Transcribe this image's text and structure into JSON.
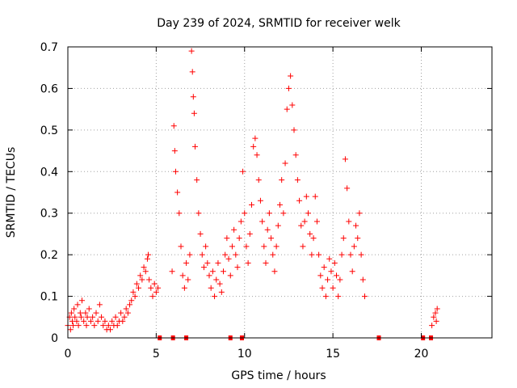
{
  "chart_data": {
    "type": "scatter",
    "title": "Day 239 of 2024, SRMTID for receiver welk",
    "xlabel": "GPS time / hours",
    "ylabel": "SRMTID / TECUs",
    "xlim": [
      0,
      24
    ],
    "ylim": [
      0,
      0.7
    ],
    "xticks": [
      0,
      5,
      10,
      15,
      20
    ],
    "xtick_labels": [
      "0",
      "5",
      "10",
      "15",
      "20"
    ],
    "yticks": [
      0,
      0.1,
      0.2,
      0.3,
      0.4,
      0.5,
      0.6,
      0.7
    ],
    "ytick_labels": [
      "0",
      "0.1",
      "0.2",
      "0.3",
      "0.4",
      "0.5",
      "0.6",
      "0.7"
    ],
    "grid": true,
    "marker": "+",
    "series": [
      {
        "name": "SRMTID",
        "color": "#ff0000",
        "points": [
          [
            0.0,
            0.03
          ],
          [
            0.1,
            0.05
          ],
          [
            0.15,
            0.02
          ],
          [
            0.2,
            0.06
          ],
          [
            0.25,
            0.04
          ],
          [
            0.3,
            0.03
          ],
          [
            0.35,
            0.07
          ],
          [
            0.4,
            0.05
          ],
          [
            0.5,
            0.04
          ],
          [
            0.55,
            0.08
          ],
          [
            0.6,
            0.03
          ],
          [
            0.7,
            0.06
          ],
          [
            0.75,
            0.05
          ],
          [
            0.8,
            0.09
          ],
          [
            0.9,
            0.04
          ],
          [
            1.0,
            0.06
          ],
          [
            1.05,
            0.03
          ],
          [
            1.1,
            0.05
          ],
          [
            1.2,
            0.07
          ],
          [
            1.3,
            0.04
          ],
          [
            1.4,
            0.05
          ],
          [
            1.5,
            0.03
          ],
          [
            1.6,
            0.06
          ],
          [
            1.7,
            0.04
          ],
          [
            1.8,
            0.08
          ],
          [
            1.9,
            0.05
          ],
          [
            2.0,
            0.03
          ],
          [
            2.1,
            0.04
          ],
          [
            2.2,
            0.02
          ],
          [
            2.3,
            0.03
          ],
          [
            2.4,
            0.02
          ],
          [
            2.5,
            0.04
          ],
          [
            2.6,
            0.03
          ],
          [
            2.7,
            0.05
          ],
          [
            2.8,
            0.03
          ],
          [
            2.9,
            0.04
          ],
          [
            3.0,
            0.06
          ],
          [
            3.1,
            0.04
          ],
          [
            3.2,
            0.05
          ],
          [
            3.3,
            0.07
          ],
          [
            3.4,
            0.06
          ],
          [
            3.5,
            0.08
          ],
          [
            3.6,
            0.09
          ],
          [
            3.7,
            0.11
          ],
          [
            3.8,
            0.1
          ],
          [
            3.9,
            0.13
          ],
          [
            4.0,
            0.12
          ],
          [
            4.1,
            0.15
          ],
          [
            4.2,
            0.14
          ],
          [
            4.3,
            0.17
          ],
          [
            4.4,
            0.16
          ],
          [
            4.5,
            0.19
          ],
          [
            4.55,
            0.2
          ],
          [
            4.6,
            0.14
          ],
          [
            4.7,
            0.12
          ],
          [
            4.8,
            0.1
          ],
          [
            4.9,
            0.13
          ],
          [
            5.0,
            0.11
          ],
          [
            5.1,
            0.12
          ],
          [
            5.9,
            0.16
          ],
          [
            6.0,
            0.51
          ],
          [
            6.05,
            0.45
          ],
          [
            6.1,
            0.4
          ],
          [
            6.2,
            0.35
          ],
          [
            6.3,
            0.3
          ],
          [
            6.4,
            0.22
          ],
          [
            6.5,
            0.15
          ],
          [
            6.6,
            0.12
          ],
          [
            6.7,
            0.18
          ],
          [
            6.8,
            0.14
          ],
          [
            6.9,
            0.2
          ],
          [
            7.0,
            0.69
          ],
          [
            7.05,
            0.64
          ],
          [
            7.1,
            0.58
          ],
          [
            7.15,
            0.54
          ],
          [
            7.2,
            0.46
          ],
          [
            7.3,
            0.38
          ],
          [
            7.4,
            0.3
          ],
          [
            7.5,
            0.25
          ],
          [
            7.6,
            0.2
          ],
          [
            7.7,
            0.17
          ],
          [
            7.8,
            0.22
          ],
          [
            7.9,
            0.18
          ],
          [
            8.0,
            0.15
          ],
          [
            8.1,
            0.12
          ],
          [
            8.2,
            0.16
          ],
          [
            8.3,
            0.1
          ],
          [
            8.4,
            0.14
          ],
          [
            8.5,
            0.18
          ],
          [
            8.6,
            0.13
          ],
          [
            8.7,
            0.11
          ],
          [
            8.8,
            0.16
          ],
          [
            8.9,
            0.2
          ],
          [
            9.0,
            0.24
          ],
          [
            9.1,
            0.19
          ],
          [
            9.2,
            0.15
          ],
          [
            9.3,
            0.22
          ],
          [
            9.4,
            0.26
          ],
          [
            9.5,
            0.2
          ],
          [
            9.6,
            0.17
          ],
          [
            9.7,
            0.24
          ],
          [
            9.8,
            0.28
          ],
          [
            9.9,
            0.4
          ],
          [
            10.0,
            0.3
          ],
          [
            10.1,
            0.22
          ],
          [
            10.2,
            0.18
          ],
          [
            10.3,
            0.25
          ],
          [
            10.4,
            0.32
          ],
          [
            10.5,
            0.46
          ],
          [
            10.6,
            0.48
          ],
          [
            10.7,
            0.44
          ],
          [
            10.8,
            0.38
          ],
          [
            10.9,
            0.33
          ],
          [
            11.0,
            0.28
          ],
          [
            11.1,
            0.22
          ],
          [
            11.2,
            0.18
          ],
          [
            11.3,
            0.26
          ],
          [
            11.4,
            0.3
          ],
          [
            11.5,
            0.24
          ],
          [
            11.6,
            0.2
          ],
          [
            11.7,
            0.16
          ],
          [
            11.8,
            0.22
          ],
          [
            11.9,
            0.27
          ],
          [
            12.0,
            0.32
          ],
          [
            12.1,
            0.38
          ],
          [
            12.2,
            0.3
          ],
          [
            12.3,
            0.42
          ],
          [
            12.4,
            0.55
          ],
          [
            12.5,
            0.6
          ],
          [
            12.6,
            0.63
          ],
          [
            12.7,
            0.56
          ],
          [
            12.8,
            0.5
          ],
          [
            12.9,
            0.44
          ],
          [
            13.0,
            0.38
          ],
          [
            13.1,
            0.33
          ],
          [
            13.2,
            0.27
          ],
          [
            13.3,
            0.22
          ],
          [
            13.4,
            0.28
          ],
          [
            13.5,
            0.34
          ],
          [
            13.6,
            0.3
          ],
          [
            13.7,
            0.25
          ],
          [
            13.8,
            0.2
          ],
          [
            13.9,
            0.24
          ],
          [
            14.0,
            0.34
          ],
          [
            14.1,
            0.28
          ],
          [
            14.2,
            0.2
          ],
          [
            14.3,
            0.15
          ],
          [
            14.4,
            0.12
          ],
          [
            14.5,
            0.17
          ],
          [
            14.6,
            0.1
          ],
          [
            14.7,
            0.14
          ],
          [
            14.8,
            0.19
          ],
          [
            14.9,
            0.16
          ],
          [
            15.0,
            0.12
          ],
          [
            15.1,
            0.18
          ],
          [
            15.2,
            0.15
          ],
          [
            15.3,
            0.1
          ],
          [
            15.4,
            0.14
          ],
          [
            15.5,
            0.2
          ],
          [
            15.6,
            0.24
          ],
          [
            15.7,
            0.43
          ],
          [
            15.8,
            0.36
          ],
          [
            15.9,
            0.28
          ],
          [
            16.0,
            0.2
          ],
          [
            16.1,
            0.16
          ],
          [
            16.2,
            0.22
          ],
          [
            16.3,
            0.27
          ],
          [
            16.4,
            0.24
          ],
          [
            16.5,
            0.3
          ],
          [
            16.6,
            0.2
          ],
          [
            16.7,
            0.14
          ],
          [
            16.8,
            0.1
          ],
          [
            20.6,
            0.03
          ],
          [
            20.7,
            0.05
          ],
          [
            20.8,
            0.06
          ],
          [
            20.85,
            0.04
          ],
          [
            20.9,
            0.07
          ]
        ]
      }
    ],
    "zero_markers": [
      5.2,
      5.95,
      6.7,
      9.2,
      9.85,
      17.6,
      20.1,
      20.55
    ]
  }
}
